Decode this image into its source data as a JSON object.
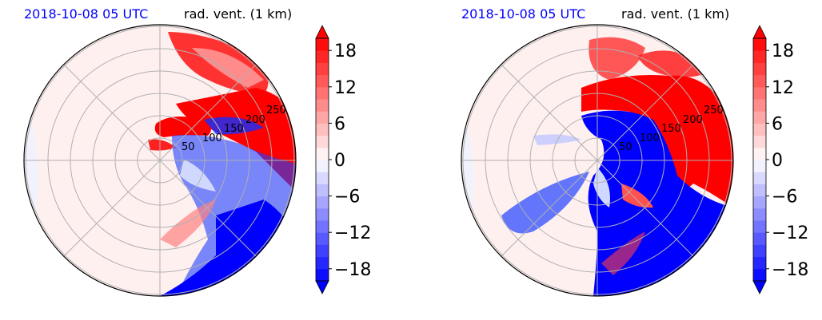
{
  "chart_data": [
    {
      "type": "heatmap",
      "projection": "polar (PPI radar)",
      "title_left": "2018-10-08 05 UTC",
      "title_right": "rad. vent. (1 km)",
      "range_ring_labels": [
        "50",
        "100",
        "150",
        "200",
        "250"
      ],
      "colorbar": {
        "ticks": [
          "18",
          "12",
          "6",
          "0",
          "−6",
          "−12",
          "−18"
        ],
        "range": [
          -20,
          20
        ],
        "extend": "both",
        "colormap": "bwr"
      }
    },
    {
      "type": "heatmap",
      "projection": "polar (PPI radar)",
      "title_left": "2018-10-08 05 UTC",
      "title_right": "rad. vent. (1 km)",
      "range_ring_labels": [
        "50",
        "100",
        "150",
        "200",
        "250"
      ],
      "colorbar": {
        "ticks": [
          "18",
          "12",
          "6",
          "0",
          "−6",
          "−12",
          "−18"
        ],
        "range": [
          -20,
          20
        ],
        "extend": "both",
        "colormap": "bwr"
      }
    }
  ],
  "colors": {
    "title_left": "#0000ff",
    "positive": "#ff0000",
    "negative": "#0000ff",
    "background": "#fff0f0"
  }
}
